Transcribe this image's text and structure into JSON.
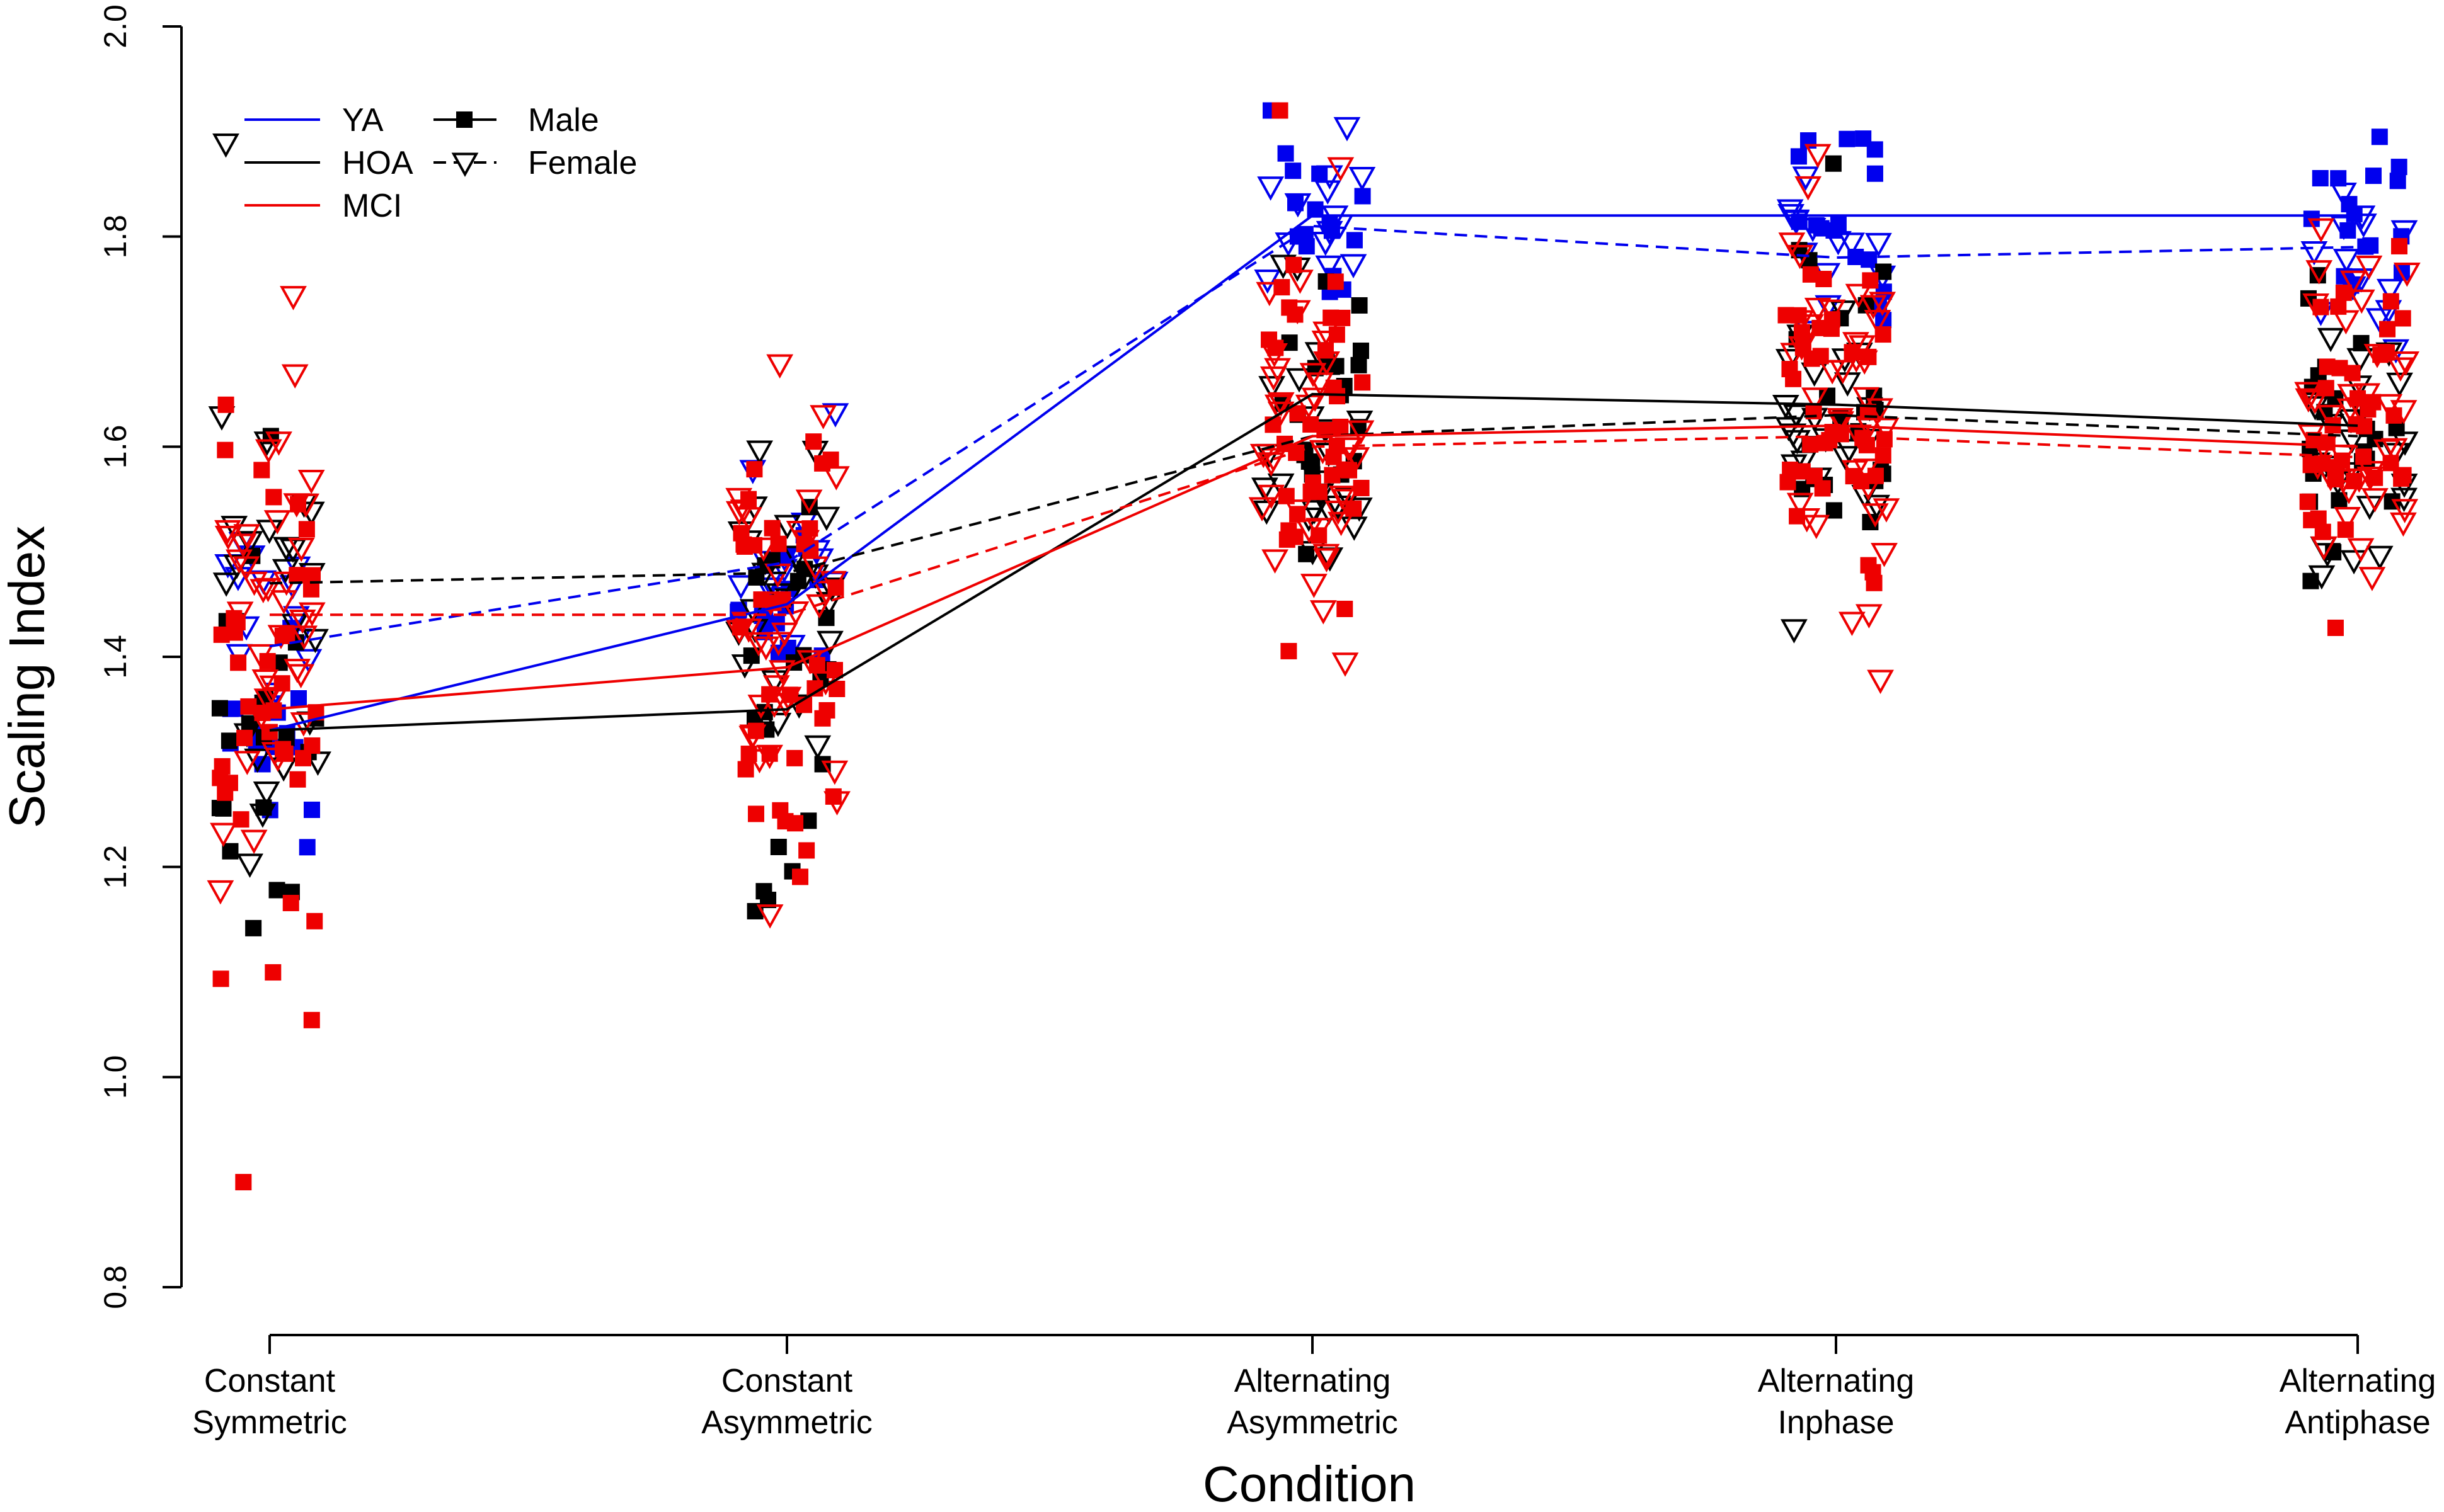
{
  "chart_data": {
    "type": "scatter",
    "title": "",
    "xlabel": "Condition",
    "ylabel": "Scaling Index",
    "ylim": [
      0.8,
      2.0
    ],
    "yticks": [
      "0.8",
      "1.0",
      "1.2",
      "1.4",
      "1.6",
      "1.8",
      "2.0"
    ],
    "categories": [
      [
        "Constant",
        "Symmetric"
      ],
      [
        "Constant",
        "Asymmetric"
      ],
      [
        "Alternating",
        "Asymmetric"
      ],
      [
        "Alternating",
        "Inphase"
      ],
      [
        "Alternating",
        "Antiphase"
      ]
    ],
    "colors": {
      "YA": "#0000ee",
      "HOA": "#000000",
      "MCI": "#ee0000"
    },
    "legend": {
      "groups": [
        "YA",
        "HOA",
        "MCI"
      ],
      "sexes": [
        "Male",
        "Female"
      ],
      "position": "top-left"
    },
    "series": [
      {
        "name": "YA Male",
        "group": "YA",
        "sex": "Male",
        "values": [
          1.33,
          1.45,
          1.82,
          1.82,
          1.82
        ]
      },
      {
        "name": "YA Female",
        "group": "YA",
        "sex": "Female",
        "values": [
          1.41,
          1.49,
          1.81,
          1.78,
          1.79
        ]
      },
      {
        "name": "HOA Male",
        "group": "HOA",
        "sex": "Male",
        "values": [
          1.33,
          1.35,
          1.65,
          1.64,
          1.62
        ]
      },
      {
        "name": "HOA Female",
        "group": "HOA",
        "sex": "Female",
        "values": [
          1.47,
          1.48,
          1.61,
          1.63,
          1.61
        ]
      },
      {
        "name": "MCI Male",
        "group": "MCI",
        "sex": "Male",
        "values": [
          1.35,
          1.39,
          1.61,
          1.62,
          1.6
        ]
      },
      {
        "name": "MCI Female",
        "group": "MCI",
        "sex": "Female",
        "values": [
          1.44,
          1.44,
          1.6,
          1.61,
          1.59
        ]
      }
    ],
    "scatter_spec": [
      {
        "group": "YA",
        "sex": "Male",
        "n": 16,
        "centers": [
          1.33,
          1.46,
          1.83,
          1.82,
          1.82
        ],
        "sd": [
          0.07,
          0.05,
          0.05,
          0.05,
          0.05
        ]
      },
      {
        "group": "YA",
        "sex": "Female",
        "n": 14,
        "centers": [
          1.42,
          1.5,
          1.81,
          1.78,
          1.79
        ],
        "sd": [
          0.07,
          0.05,
          0.04,
          0.04,
          0.04
        ]
      },
      {
        "group": "HOA",
        "sex": "Male",
        "n": 22,
        "centers": [
          1.33,
          1.33,
          1.65,
          1.63,
          1.62
        ],
        "sd": [
          0.11,
          0.14,
          0.07,
          0.08,
          0.07
        ]
      },
      {
        "group": "HOA",
        "sex": "Female",
        "n": 24,
        "centers": [
          1.47,
          1.48,
          1.61,
          1.63,
          1.61
        ],
        "sd": [
          0.11,
          0.07,
          0.08,
          0.06,
          0.06
        ]
      },
      {
        "group": "MCI",
        "sex": "Male",
        "n": 40,
        "centers": [
          1.35,
          1.39,
          1.61,
          1.62,
          1.6
        ],
        "sd": [
          0.14,
          0.11,
          0.1,
          0.09,
          0.09
        ]
      },
      {
        "group": "MCI",
        "sex": "Female",
        "n": 40,
        "centers": [
          1.45,
          1.44,
          1.6,
          1.61,
          1.59
        ],
        "sd": [
          0.12,
          0.1,
          0.1,
          0.1,
          0.09
        ]
      }
    ]
  }
}
